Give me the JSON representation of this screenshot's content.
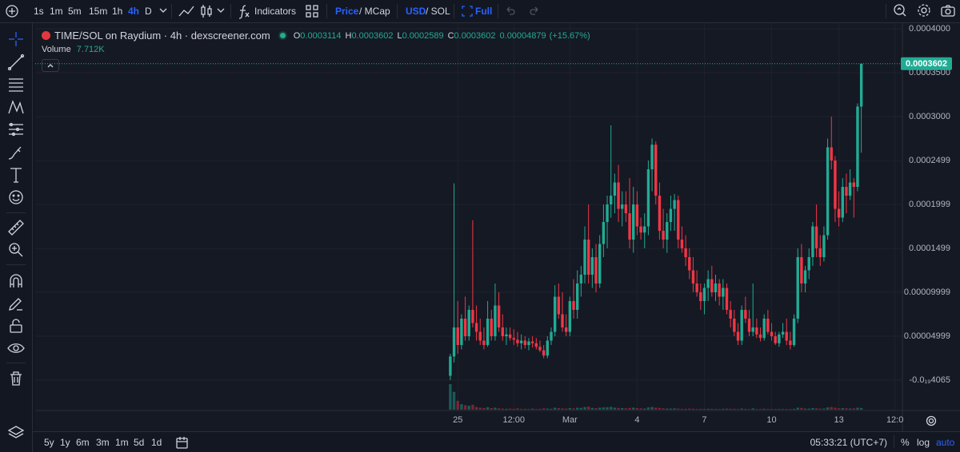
{
  "toolbar": {
    "intervals": [
      {
        "label": "1s"
      },
      {
        "label": "1m"
      },
      {
        "label": "5m"
      },
      {
        "label": "15m"
      },
      {
        "label": "1h"
      },
      {
        "label": "4h",
        "active": true
      },
      {
        "label": "D"
      }
    ],
    "indicators": "Indicators",
    "price_toggle": [
      "Price",
      "/ MCap"
    ],
    "currency_toggle": [
      "USD",
      "/ SOL"
    ],
    "full": "Full"
  },
  "chart_data": {
    "type": "candlestick",
    "title": "TIME/SOL on Raydium · 4h · dexscreener.com",
    "ohlc_letters": [
      "O",
      "H",
      "L",
      "C"
    ],
    "change": 4.879e-05,
    "change_label": "(+15.67%)",
    "volume_title": "Volume",
    "volume_label": "7.712K",
    "up_color": "#22ab94",
    "down_color": "#f23645",
    "grid": true,
    "last_price_line": true,
    "open": [
      5e-06,
      2.7e-05,
      6e-05,
      4e-05,
      7e-05,
      5e-05,
      8e-05,
      6.5e-05,
      5.5e-05,
      4.5e-05,
      4e-05,
      7e-05,
      5e-05,
      8.5e-05,
      6e-05,
      5e-05,
      5.2e-05,
      4.8e-05,
      4.6e-05,
      4.2e-05,
      4.5e-05,
      4e-05,
      4.4e-05,
      4.2e-05,
      3.8e-05,
      3.4e-05,
      2.8e-05,
      4.5e-05,
      5.5e-05,
      9.5e-05,
      7.5e-05,
      6e-05,
      5.5e-05,
      9e-05,
      8e-05,
      0.00011,
      0.00012,
      0.00016,
      0.00012,
      0.00014,
      0.00011,
      0.000155,
      0.00018,
      0.0002,
      0.00021,
      0.000225,
      0.000195,
      0.0002,
      0.00019,
      0.00016,
      0.0002,
      0.000175,
      0.000168,
      0.000175,
      0.00024,
      0.000268,
      0.00021,
      0.00017,
      0.00016,
      0.00018,
      0.000195,
      0.000205,
      0.00016,
      0.00015,
      0.00014,
      0.000125,
      0.00011,
      0.0001,
      9e-05,
      0.000105,
      0.000115,
      0.0001,
      0.00011,
      9.5e-05,
      0.000105,
      8e-05,
      7e-05,
      5.5e-05,
      4.5e-05,
      8e-05,
      7e-05,
      5.5e-05,
      6e-05,
      5.2e-05,
      4.8e-05,
      7e-05,
      5.5e-05,
      5e-05,
      4.2e-05,
      5.2e-05,
      5.5e-05,
      4.5e-05,
      4e-05,
      7e-05,
      0.00014,
      0.00011,
      0.000125,
      0.00014,
      0.000175,
      0.00015,
      0.00014,
      0.000165,
      0.000265,
      0.00025,
      0.000195,
      0.000185,
      0.00022,
      0.00021,
      0.000225,
      0.00022,
      0.0003114
    ],
    "high": [
      3e-05,
      0.000224,
      9e-05,
      7.5e-05,
      9.5e-05,
      8.5e-05,
      0.000182,
      8.5e-05,
      7e-05,
      6e-05,
      9e-05,
      8e-05,
      0.00011,
      0.0001,
      7.5e-05,
      6e-05,
      6e-05,
      5.8e-05,
      5.5e-05,
      5.2e-05,
      5e-05,
      4.8e-05,
      5e-05,
      4.8e-05,
      4.5e-05,
      4e-05,
      5e-05,
      6e-05,
      0.000108,
      0.00011,
      0.0001,
      7.5e-05,
      9.5e-05,
      0.000115,
      0.000125,
      0.00013,
      0.000175,
      0.0002,
      0.00015,
      0.000155,
      0.000165,
      0.0002,
      0.00021,
      0.00029,
      0.000235,
      0.000245,
      0.000215,
      0.000215,
      0.00023,
      0.00022,
      0.000215,
      0.000185,
      0.00019,
      0.00025,
      0.000275,
      0.000272,
      0.000225,
      0.000195,
      0.00019,
      0.00021,
      0.000212,
      0.00021,
      0.000175,
      0.000165,
      0.00015,
      0.00014,
      0.000125,
      0.00011,
      0.00011,
      0.000125,
      0.00013,
      0.00012,
      0.000115,
      0.000115,
      0.00011,
      9e-05,
      8e-05,
      6.5e-05,
      8.5e-05,
      9.5e-05,
      8e-05,
      0.00011,
      7e-05,
      6e-05,
      7.5e-05,
      8e-05,
      6.5e-05,
      5.5e-05,
      5.5e-05,
      6.5e-05,
      7e-05,
      5.5e-05,
      7.5e-05,
      0.00015,
      0.000155,
      0.00013,
      0.00015,
      0.00018,
      0.0002,
      0.000165,
      0.000175,
      0.000275,
      0.0003,
      0.000255,
      0.000215,
      0.00023,
      0.000235,
      0.00024,
      0.00023,
      0.000315,
      0.0003602
    ],
    "low": [
      0,
      2e-05,
      3e-05,
      3.5e-05,
      4.5e-05,
      4.5e-05,
      6e-05,
      4.5e-05,
      4e-05,
      3.5e-05,
      3.8e-05,
      4.5e-05,
      4.5e-05,
      5.5e-05,
      4.5e-05,
      4e-05,
      4.5e-05,
      4e-05,
      3.8e-05,
      3.5e-05,
      3.6e-05,
      3.4e-05,
      3.7e-05,
      3.5e-05,
      3.2e-05,
      2.5e-05,
      2.5e-05,
      4e-05,
      5e-05,
      7e-05,
      5.5e-05,
      5e-05,
      5e-05,
      7e-05,
      7e-05,
      9.5e-05,
      0.00011,
      0.00011,
      0.000105,
      0.0001,
      0.000105,
      0.00014,
      0.00015,
      0.000185,
      0.00019,
      0.00018,
      0.000175,
      0.00018,
      0.00015,
      0.000145,
      0.000165,
      0.00016,
      0.00015,
      0.000165,
      0.000215,
      0.0002,
      0.00016,
      0.00015,
      0.000145,
      0.00017,
      0.00017,
      0.00015,
      0.000145,
      0.00013,
      0.000115,
      0.0001,
      9.5e-05,
      8e-05,
      7.5e-05,
      9e-05,
      9.5e-05,
      9e-05,
      8.5e-05,
      8e-05,
      7.5e-05,
      6e-05,
      5e-05,
      4e-05,
      4e-05,
      6.5e-05,
      5e-05,
      5e-05,
      4.8e-05,
      4.4e-05,
      4.5e-05,
      5.2e-05,
      4.5e-05,
      4e-05,
      3.8e-05,
      4.8e-05,
      4e-05,
      3.5e-05,
      3.8e-05,
      6.5e-05,
      0.0001,
      0.0001,
      0.000115,
      0.00013,
      0.00014,
      0.00013,
      0.000135,
      0.00016,
      0.00024,
      0.00018,
      0.000175,
      0.00018,
      0.00019,
      0.000205,
      0.000185,
      0.000215,
      0.0002589
    ],
    "close": [
      2.7e-05,
      6e-05,
      4e-05,
      7e-05,
      5e-05,
      8e-05,
      6.5e-05,
      5.5e-05,
      4.5e-05,
      4e-05,
      7e-05,
      5e-05,
      8.5e-05,
      6e-05,
      5e-05,
      5.2e-05,
      4.8e-05,
      4.6e-05,
      4.2e-05,
      4.5e-05,
      4e-05,
      4.4e-05,
      4.2e-05,
      3.8e-05,
      3.4e-05,
      2.8e-05,
      4.5e-05,
      5.5e-05,
      9.5e-05,
      7.5e-05,
      6e-05,
      5.5e-05,
      9e-05,
      8e-05,
      0.00011,
      0.00012,
      0.00016,
      0.00012,
      0.00014,
      0.00011,
      0.000155,
      0.00018,
      0.0002,
      0.00021,
      0.000225,
      0.000195,
      0.0002,
      0.00019,
      0.00016,
      0.0002,
      0.000175,
      0.000168,
      0.000175,
      0.00024,
      0.000268,
      0.00021,
      0.00017,
      0.00016,
      0.00018,
      0.000195,
      0.000205,
      0.00016,
      0.00015,
      0.00014,
      0.000125,
      0.00011,
      0.0001,
      9e-05,
      0.000105,
      0.000115,
      0.0001,
      0.00011,
      9.5e-05,
      0.000105,
      8e-05,
      7e-05,
      5.5e-05,
      4.5e-05,
      8e-05,
      7e-05,
      5.5e-05,
      6e-05,
      5.2e-05,
      4.8e-05,
      7e-05,
      5.5e-05,
      5e-05,
      4.2e-05,
      5.2e-05,
      5.5e-05,
      4.5e-05,
      4e-05,
      7e-05,
      0.00014,
      0.00011,
      0.000125,
      0.00014,
      0.000175,
      0.00015,
      0.00014,
      0.000165,
      0.000265,
      0.00025,
      0.000195,
      0.000185,
      0.00022,
      0.00021,
      0.000225,
      0.00022,
      0.0003114,
      0.0003602
    ],
    "volume": [
      115000,
      80000,
      40000,
      25000,
      20000,
      18000,
      22000,
      12000,
      9000,
      8000,
      11000,
      7000,
      9000,
      6000,
      5000,
      4000,
      5000,
      4000,
      6000,
      3000,
      4000,
      3000,
      5000,
      3000,
      4000,
      6000,
      5000,
      4000,
      9000,
      7000,
      6000,
      5000,
      7000,
      6000,
      9000,
      8000,
      12000,
      14000,
      8000,
      7000,
      9000,
      10000,
      11000,
      13000,
      9000,
      8000,
      7000,
      6000,
      8000,
      9000,
      7000,
      6000,
      5000,
      10000,
      12000,
      9000,
      8000,
      6000,
      5000,
      5000,
      6000,
      5000,
      4000,
      4000,
      5000,
      4000,
      3000,
      4000,
      3000,
      4000,
      4000,
      3000,
      3000,
      4000,
      5000,
      4000,
      4000,
      3000,
      5000,
      4000,
      3000,
      6000,
      3000,
      3000,
      4000,
      3000,
      3000,
      3000,
      3000,
      3000,
      3000,
      3000,
      4000,
      9000,
      8000,
      5000,
      5000,
      7000,
      6000,
      5000,
      5000,
      10000,
      12000,
      9000,
      6000,
      7000,
      6000,
      5000,
      6000,
      9000,
      7712
    ],
    "xlim": [
      -111.1,
      121
    ],
    "xticks": [
      {
        "value": 2,
        "label": "25"
      },
      {
        "value": 17,
        "label": "12:00"
      },
      {
        "value": 32,
        "label": "Mar"
      },
      {
        "value": 50,
        "label": "4"
      },
      {
        "value": 68,
        "label": "7"
      },
      {
        "value": 86,
        "label": "10"
      },
      {
        "value": 104,
        "label": "13"
      },
      {
        "value": 119,
        "label": "12:0"
      }
    ],
    "ylim": [
      -3.36e-05,
      0.0004018
    ],
    "yticks": [
      {
        "value": 0.0004,
        "label": "0.0004000"
      },
      {
        "value": 0.00035,
        "label": "0.0003500"
      },
      {
        "value": 0.0003,
        "label": "0.0003000"
      },
      0.0002499,
      0.0001999,
      0.0001499,
      9.999e-05,
      4.999e-05,
      {
        "value": -4.065e-20,
        "label": "-0.0₁₉4065"
      }
    ]
  },
  "bottom": {
    "ranges": [
      "5y",
      "1y",
      "6m",
      "3m",
      "1m",
      "5d",
      "1d"
    ],
    "clock": "05:33:21 (UTC+7)",
    "scale_options": [
      "%",
      "log",
      "auto"
    ]
  }
}
